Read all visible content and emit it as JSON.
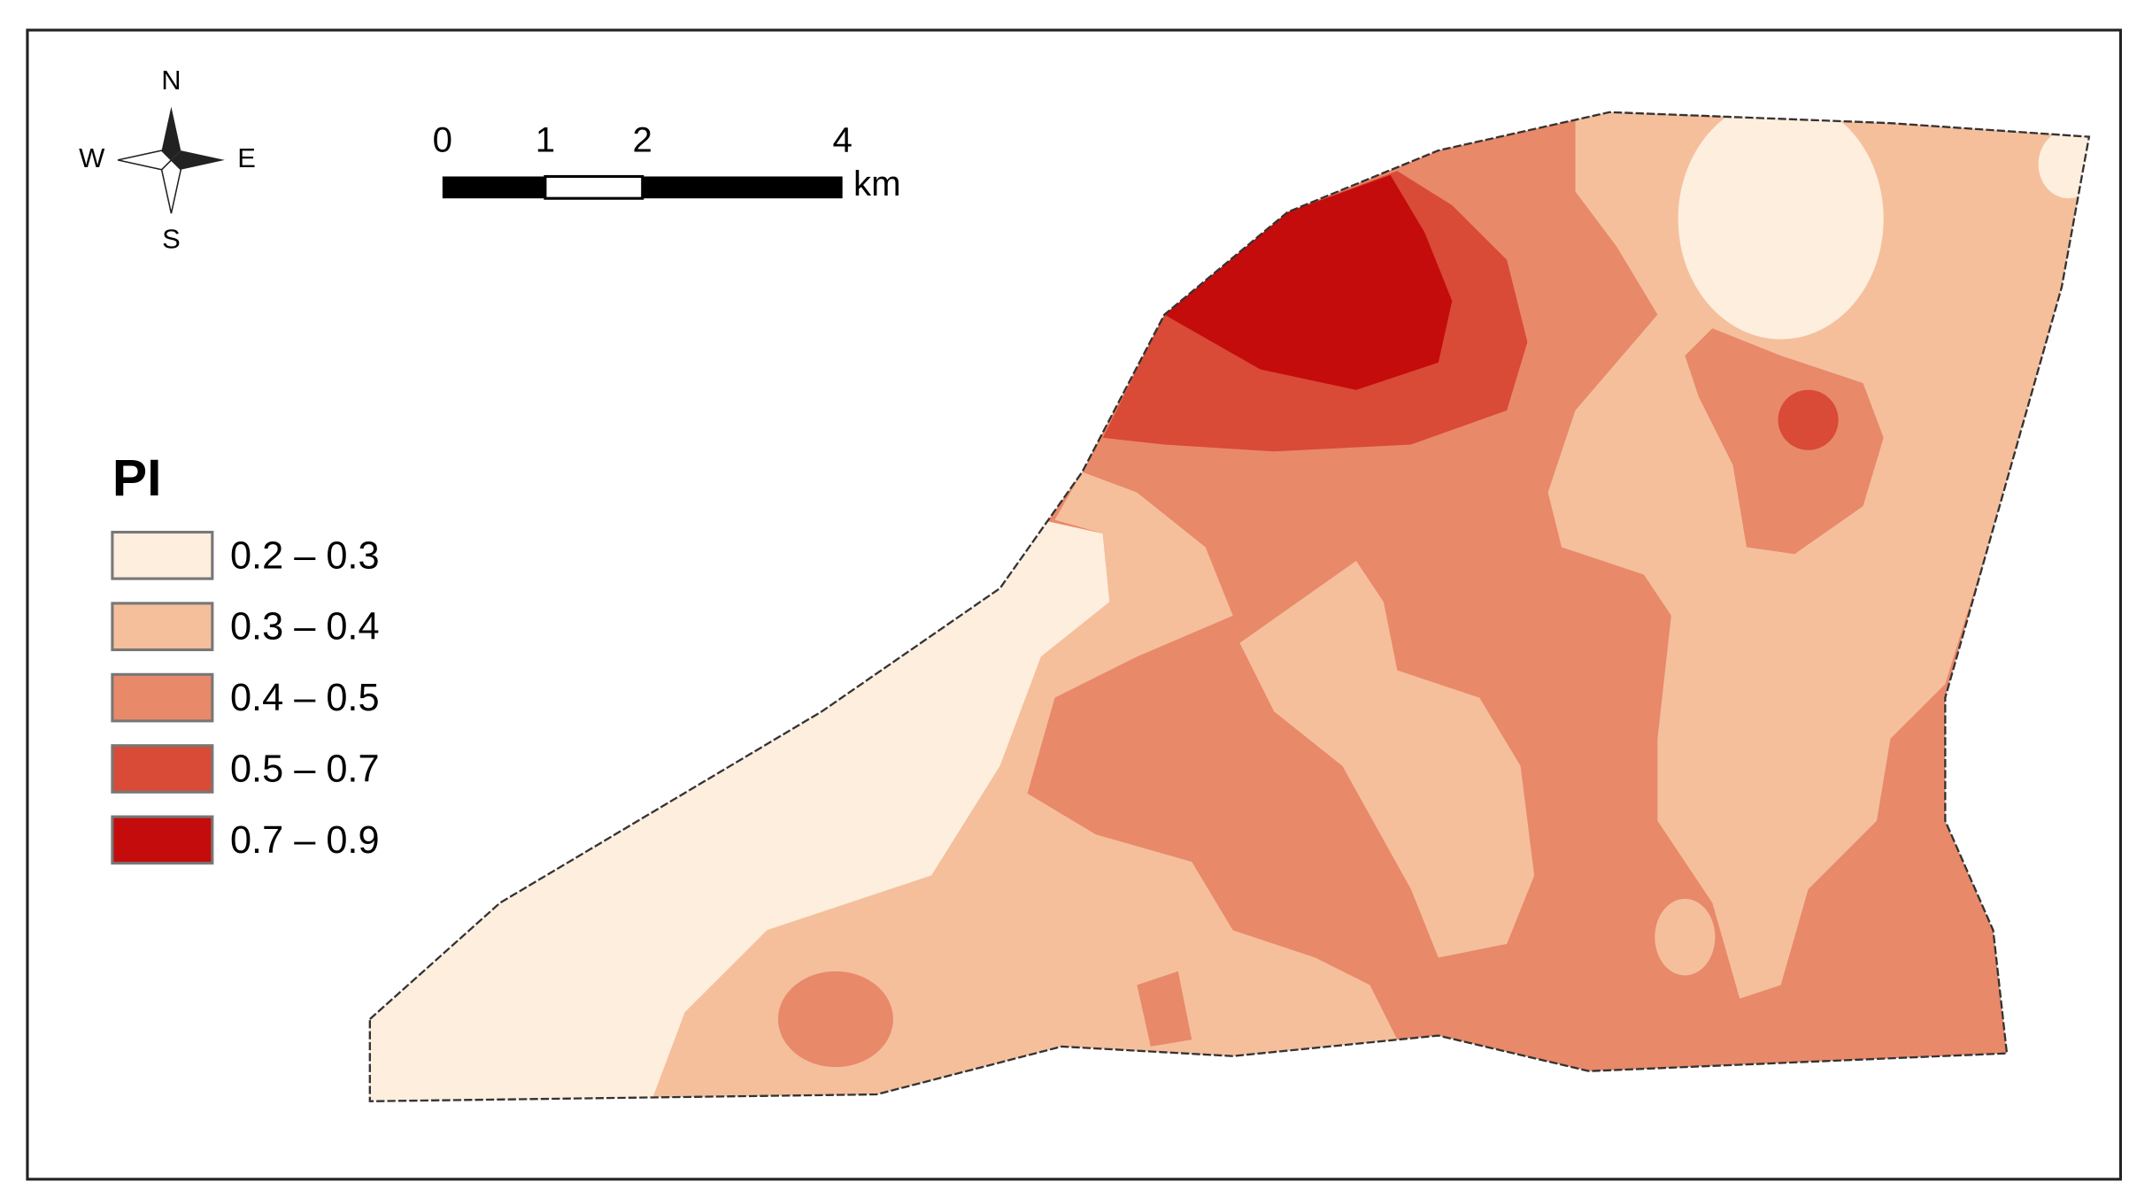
{
  "compass": {
    "north": "N",
    "south": "S",
    "west": "W",
    "east": "E"
  },
  "scale_bar": {
    "labels": [
      "0",
      "1",
      "2",
      "4"
    ],
    "unit": "km"
  },
  "legend": {
    "title": "PI",
    "items": [
      {
        "label": "0.2 – 0.3",
        "color": "#fdeedd"
      },
      {
        "label": "0.3 – 0.4",
        "color": "#f5bf9c"
      },
      {
        "label": "0.4 – 0.5",
        "color": "#e8896a"
      },
      {
        "label": "0.5 – 0.7",
        "color": "#d94a37"
      },
      {
        "label": "0.7 – 0.9",
        "color": "#c40c0c"
      }
    ]
  }
}
